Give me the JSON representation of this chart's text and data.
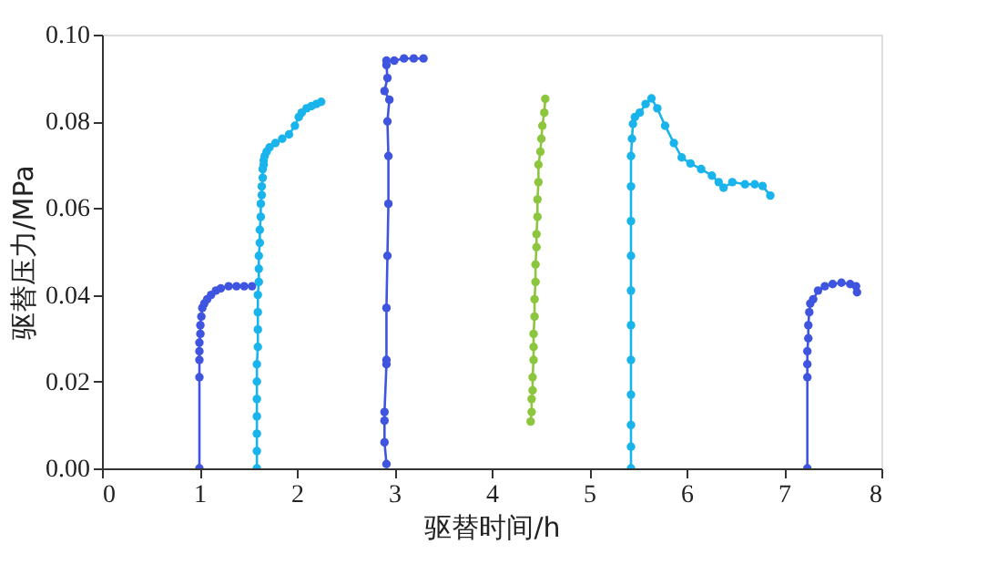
{
  "chart_data": {
    "type": "line",
    "xlabel": "驱替时间/h",
    "ylabel": "驱替压力/MPa",
    "xlim": [
      0,
      8
    ],
    "ylim": [
      0,
      0.1
    ],
    "xticks": [
      0,
      1,
      2,
      3,
      4,
      5,
      6,
      7,
      8
    ],
    "yticks": [
      {
        "value": 0,
        "label": "0.00"
      },
      {
        "value": 0.02,
        "label": "0.02"
      },
      {
        "value": 0.04,
        "label": "0.04"
      },
      {
        "value": 0.06,
        "label": "0.06"
      },
      {
        "value": 0.08,
        "label": "0.08"
      },
      {
        "value": 0.1,
        "label": "0.10"
      }
    ],
    "grid": false,
    "marker": "circle",
    "line_style": "solid",
    "series": [
      {
        "color": "#3f55e0",
        "x": [
          1.0,
          1.0,
          1.0,
          1.0,
          1.0,
          1.01,
          1.01,
          1.02,
          1.03,
          1.05,
          1.08,
          1.12,
          1.17,
          1.22,
          1.3,
          1.38,
          1.46,
          1.54
        ],
        "values": [
          0,
          0.021,
          0.025,
          0.027,
          0.029,
          0.031,
          0.033,
          0.035,
          0.037,
          0.038,
          0.039,
          0.04,
          0.041,
          0.0415,
          0.042,
          0.042,
          0.042,
          0.042
        ]
      },
      {
        "color": "#19b4ec",
        "x": [
          1.59,
          1.59,
          1.59,
          1.59,
          1.59,
          1.59,
          1.59,
          1.6,
          1.6,
          1.6,
          1.6,
          1.61,
          1.61,
          1.61,
          1.62,
          1.62,
          1.63,
          1.63,
          1.64,
          1.64,
          1.65,
          1.65,
          1.66,
          1.66,
          1.67,
          1.69,
          1.72,
          1.78,
          1.85,
          1.92,
          1.98,
          2.02,
          2.05,
          2.1,
          2.15,
          2.2,
          2.25
        ],
        "values": [
          0,
          0.004,
          0.008,
          0.012,
          0.016,
          0.02,
          0.024,
          0.028,
          0.032,
          0.036,
          0.04,
          0.043,
          0.046,
          0.049,
          0.052,
          0.055,
          0.058,
          0.061,
          0.063,
          0.065,
          0.067,
          0.069,
          0.07,
          0.071,
          0.072,
          0.073,
          0.074,
          0.075,
          0.076,
          0.077,
          0.079,
          0.081,
          0.082,
          0.083,
          0.0835,
          0.084,
          0.0845
        ]
      },
      {
        "color": "#3f55e0",
        "x": [
          2.92,
          2.9,
          2.9,
          2.9,
          2.92,
          2.92,
          2.92,
          2.93,
          2.94,
          2.94,
          2.93,
          2.95,
          2.9,
          2.93,
          2.92,
          2.92,
          3.0,
          3.1,
          3.2,
          3.3
        ],
        "values": [
          0.001,
          0.006,
          0.011,
          0.013,
          0.024,
          0.025,
          0.037,
          0.049,
          0.061,
          0.072,
          0.08,
          0.085,
          0.087,
          0.09,
          0.093,
          0.094,
          0.094,
          0.0945,
          0.0945,
          0.0945
        ]
      },
      {
        "color": "#8cc63e",
        "x": [
          4.4,
          4.41,
          4.41,
          4.42,
          4.42,
          4.43,
          4.43,
          4.43,
          4.44,
          4.44,
          4.45,
          4.45,
          4.46,
          4.46,
          4.47,
          4.47,
          4.48,
          4.48,
          4.5,
          4.51,
          4.52,
          4.54,
          4.55
        ],
        "values": [
          0.0108,
          0.013,
          0.016,
          0.018,
          0.021,
          0.025,
          0.028,
          0.031,
          0.035,
          0.039,
          0.043,
          0.047,
          0.051,
          0.054,
          0.058,
          0.062,
          0.066,
          0.07,
          0.073,
          0.076,
          0.079,
          0.082,
          0.0852
        ]
      },
      {
        "color": "#19b4ec",
        "x": [
          5.43,
          5.43,
          5.43,
          5.43,
          5.43,
          5.43,
          5.43,
          5.43,
          5.43,
          5.43,
          5.43,
          5.44,
          5.45,
          5.47,
          5.52,
          5.58,
          5.64,
          5.7,
          5.78,
          5.87,
          5.95,
          6.04,
          6.15,
          6.26,
          6.33,
          6.38,
          6.47,
          6.6,
          6.7,
          6.78,
          6.86
        ],
        "values": [
          0,
          0.005,
          0.01,
          0.017,
          0.025,
          0.033,
          0.041,
          0.049,
          0.057,
          0.065,
          0.072,
          0.076,
          0.0794,
          0.081,
          0.082,
          0.084,
          0.0853,
          0.083,
          0.079,
          0.075,
          0.0717,
          0.0703,
          0.069,
          0.0675,
          0.066,
          0.0647,
          0.066,
          0.0655,
          0.0655,
          0.0651,
          0.0629
        ]
      },
      {
        "color": "#3f55e0",
        "x": [
          7.24,
          7.24,
          7.24,
          7.24,
          7.25,
          7.25,
          7.26,
          7.27,
          7.3,
          7.35,
          7.42,
          7.5,
          7.59,
          7.68,
          7.74,
          7.75
        ],
        "values": [
          0,
          0.021,
          0.024,
          0.027,
          0.03,
          0.033,
          0.036,
          0.038,
          0.039,
          0.041,
          0.042,
          0.0425,
          0.0428,
          0.0425,
          0.042,
          0.0406
        ]
      }
    ]
  }
}
